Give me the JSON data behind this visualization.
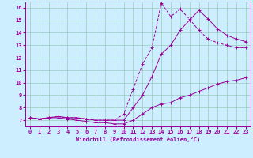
{
  "xlabel": "Windchill (Refroidissement éolien,°C)",
  "bg_color": "#cceeff",
  "grid_color": "#99ccbb",
  "line_color": "#990099",
  "xlim": [
    -0.5,
    23.5
  ],
  "ylim": [
    6.5,
    16.5
  ],
  "xticks": [
    0,
    1,
    2,
    3,
    4,
    5,
    6,
    7,
    8,
    9,
    10,
    11,
    12,
    13,
    14,
    15,
    16,
    17,
    18,
    19,
    20,
    21,
    22,
    23
  ],
  "yticks": [
    7,
    8,
    9,
    10,
    11,
    12,
    13,
    14,
    15,
    16
  ],
  "line1_x": [
    0,
    1,
    2,
    3,
    4,
    5,
    6,
    7,
    8,
    9,
    10,
    11,
    12,
    13,
    14,
    15,
    16,
    17,
    18,
    19,
    20,
    21,
    22,
    23
  ],
  "line1_y": [
    7.2,
    7.1,
    7.2,
    7.2,
    7.1,
    7.0,
    6.9,
    6.8,
    6.8,
    6.7,
    6.7,
    7.0,
    7.5,
    8.0,
    8.3,
    8.4,
    8.8,
    9.0,
    9.3,
    9.6,
    9.9,
    10.1,
    10.2,
    10.4
  ],
  "line2_x": [
    0,
    1,
    2,
    3,
    4,
    5,
    6,
    7,
    8,
    9,
    10,
    11,
    12,
    13,
    14,
    15,
    16,
    17,
    18,
    19,
    20,
    21,
    22,
    23
  ],
  "line2_y": [
    7.2,
    7.1,
    7.2,
    7.3,
    7.2,
    7.2,
    7.1,
    7.0,
    7.0,
    7.0,
    7.0,
    8.0,
    9.0,
    10.5,
    12.3,
    13.0,
    14.2,
    15.0,
    15.8,
    15.1,
    14.3,
    13.8,
    13.5,
    13.3
  ],
  "line3_x": [
    0,
    1,
    2,
    3,
    4,
    5,
    6,
    7,
    8,
    9,
    10,
    11,
    12,
    13,
    14,
    15,
    16,
    17,
    18,
    19,
    20,
    21,
    22,
    23
  ],
  "line3_y": [
    7.2,
    7.1,
    7.2,
    7.3,
    7.2,
    7.2,
    7.1,
    7.0,
    7.0,
    7.0,
    7.5,
    9.5,
    11.5,
    12.8,
    16.4,
    15.3,
    15.9,
    15.1,
    14.2,
    13.5,
    13.2,
    13.0,
    12.8,
    12.8
  ]
}
